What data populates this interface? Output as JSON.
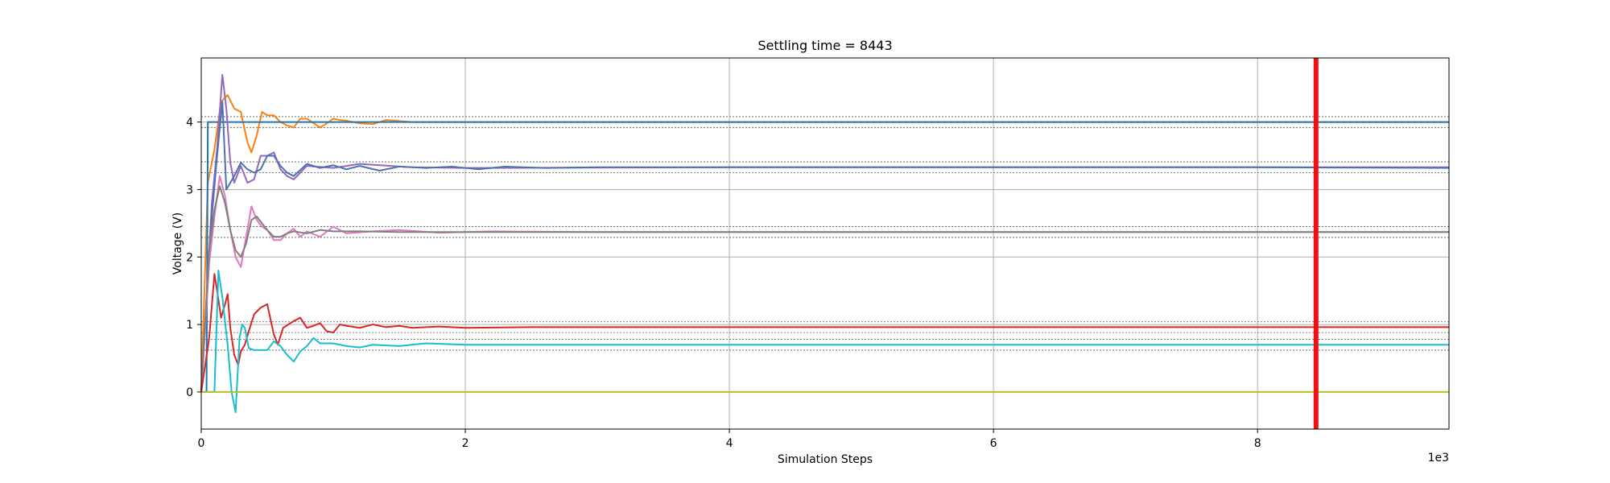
{
  "chart_data": {
    "type": "line",
    "title": "Settling time = 8443",
    "xlabel": "Simulation Steps",
    "ylabel": "Voltage (V)",
    "x_scale_note": "1e3",
    "xlim": [
      0,
      9.45
    ],
    "ylim": [
      -0.55,
      4.95
    ],
    "xticks": [
      0,
      2,
      4,
      6,
      8
    ],
    "xtick_labels": [
      "0",
      "2",
      "4",
      "6",
      "8"
    ],
    "yticks": [
      0,
      1,
      2,
      3,
      4
    ],
    "ytick_labels": [
      "0",
      "1",
      "2",
      "3",
      "4"
    ],
    "grid": true,
    "settling_marker": {
      "x": 8.443,
      "color": "#ee1111"
    },
    "tolerance_bands": [
      {
        "center": 4.0,
        "lower": 3.92,
        "upper": 4.08
      },
      {
        "center": 3.33,
        "lower": 3.25,
        "upper": 3.41
      },
      {
        "center": 2.37,
        "lower": 2.29,
        "upper": 2.45
      },
      {
        "center": 0.96,
        "lower": 0.88,
        "upper": 1.04
      },
      {
        "center": 0.7,
        "lower": 0.62,
        "upper": 0.78
      }
    ],
    "series": [
      {
        "color": "#ff7f0e",
        "x": [
          0,
          0.05,
          0.1,
          0.15,
          0.2,
          0.25,
          0.3,
          0.35,
          0.38,
          0.42,
          0.46,
          0.5,
          0.55,
          0.6,
          0.65,
          0.7,
          0.75,
          0.8,
          0.9,
          0.95,
          1.0,
          1.05,
          1.1,
          1.2,
          1.3,
          1.4,
          1.6,
          1.8,
          2.5,
          4,
          6,
          8,
          9.45
        ],
        "values": [
          0,
          3.1,
          3.6,
          4.3,
          4.4,
          4.2,
          4.15,
          3.7,
          3.55,
          3.8,
          4.15,
          4.1,
          4.1,
          4.0,
          3.95,
          3.92,
          4.05,
          4.05,
          3.92,
          3.98,
          4.05,
          4.03,
          4.02,
          3.98,
          3.97,
          4.03,
          4.0,
          4.0,
          4.0,
          4.0,
          4.0,
          4.0,
          4.0
        ]
      },
      {
        "color": "#1f77b4",
        "x": [
          0,
          0.04,
          0.05,
          0.1,
          0.2,
          0.3,
          0.5,
          1,
          2,
          4,
          6,
          8,
          9.45
        ],
        "values": [
          0,
          0,
          4.0,
          4.0,
          4.0,
          4.0,
          4.0,
          4.0,
          4.0,
          4.0,
          4.0,
          4.0,
          4.0
        ]
      },
      {
        "color": "#9467bd",
        "x": [
          0,
          0.08,
          0.12,
          0.16,
          0.19,
          0.22,
          0.25,
          0.3,
          0.35,
          0.4,
          0.45,
          0.5,
          0.55,
          0.6,
          0.65,
          0.7,
          0.8,
          1.0,
          1.2,
          1.6,
          2.0,
          4,
          6,
          8,
          9.45
        ],
        "values": [
          0,
          2.8,
          3.6,
          4.7,
          4.2,
          3.4,
          3.1,
          3.35,
          3.1,
          3.15,
          3.5,
          3.5,
          3.55,
          3.3,
          3.2,
          3.15,
          3.35,
          3.32,
          3.38,
          3.33,
          3.32,
          3.33,
          3.33,
          3.33,
          3.33
        ]
      },
      {
        "color": "#4c72b0",
        "x": [
          0,
          0.08,
          0.12,
          0.16,
          0.19,
          0.22,
          0.25,
          0.3,
          0.35,
          0.4,
          0.45,
          0.5,
          0.55,
          0.6,
          0.65,
          0.7,
          0.8,
          0.9,
          1.0,
          1.1,
          1.2,
          1.35,
          1.5,
          1.7,
          1.9,
          2.1,
          2.3,
          2.6,
          3.0,
          3.5,
          4,
          5,
          6,
          7,
          8,
          9.45
        ],
        "values": [
          0,
          2.6,
          3.5,
          4.3,
          3.0,
          3.1,
          3.2,
          3.4,
          3.3,
          3.25,
          3.3,
          3.5,
          3.5,
          3.35,
          3.25,
          3.2,
          3.38,
          3.32,
          3.36,
          3.3,
          3.35,
          3.28,
          3.34,
          3.32,
          3.34,
          3.3,
          3.34,
          3.32,
          3.33,
          3.33,
          3.33,
          3.33,
          3.33,
          3.33,
          3.33,
          3.32
        ]
      },
      {
        "color": "#e377c2",
        "x": [
          0,
          0.06,
          0.1,
          0.14,
          0.18,
          0.22,
          0.26,
          0.3,
          0.34,
          0.38,
          0.42,
          0.46,
          0.5,
          0.55,
          0.6,
          0.65,
          0.7,
          0.75,
          0.8,
          0.9,
          1.0,
          1.1,
          1.3,
          1.5,
          1.8,
          2.2,
          3,
          4,
          6,
          8,
          9.45
        ],
        "values": [
          0,
          1.9,
          2.6,
          3.2,
          2.9,
          2.4,
          2.0,
          1.85,
          2.3,
          2.75,
          2.55,
          2.45,
          2.4,
          2.25,
          2.25,
          2.35,
          2.42,
          2.3,
          2.38,
          2.3,
          2.45,
          2.35,
          2.38,
          2.4,
          2.36,
          2.38,
          2.37,
          2.37,
          2.37,
          2.37,
          2.37
        ]
      },
      {
        "color": "#7f7f7f",
        "x": [
          0,
          0.06,
          0.1,
          0.14,
          0.18,
          0.22,
          0.26,
          0.3,
          0.34,
          0.38,
          0.42,
          0.46,
          0.5,
          0.55,
          0.6,
          0.65,
          0.7,
          0.8,
          0.9,
          1.0,
          1.2,
          1.5,
          2.0,
          4,
          6,
          8,
          9.45
        ],
        "values": [
          0,
          2.1,
          2.7,
          3.05,
          2.8,
          2.4,
          2.1,
          2.0,
          2.2,
          2.55,
          2.6,
          2.5,
          2.4,
          2.3,
          2.3,
          2.35,
          2.38,
          2.35,
          2.4,
          2.38,
          2.38,
          2.37,
          2.37,
          2.37,
          2.37,
          2.37,
          2.37
        ]
      },
      {
        "color": "#d62728",
        "x": [
          0,
          0.06,
          0.1,
          0.12,
          0.15,
          0.18,
          0.2,
          0.22,
          0.25,
          0.28,
          0.3,
          0.33,
          0.36,
          0.4,
          0.45,
          0.5,
          0.55,
          0.58,
          0.62,
          0.66,
          0.7,
          0.75,
          0.8,
          0.85,
          0.9,
          0.95,
          1.0,
          1.05,
          1.1,
          1.2,
          1.3,
          1.4,
          1.5,
          1.6,
          1.8,
          2.0,
          2.5,
          3,
          4,
          5,
          6,
          7,
          8,
          9.45
        ],
        "values": [
          0,
          0.8,
          1.75,
          1.5,
          1.1,
          1.3,
          1.45,
          0.95,
          0.55,
          0.4,
          0.6,
          0.7,
          0.9,
          1.15,
          1.25,
          1.3,
          0.85,
          0.7,
          0.95,
          1.0,
          1.05,
          1.1,
          0.95,
          0.98,
          1.02,
          0.9,
          0.88,
          1.0,
          0.98,
          0.95,
          1.0,
          0.96,
          0.98,
          0.95,
          0.97,
          0.95,
          0.96,
          0.96,
          0.96,
          0.96,
          0.96,
          0.96,
          0.96,
          0.96
        ]
      },
      {
        "color": "#17becf",
        "x": [
          0,
          0.1,
          0.13,
          0.16,
          0.2,
          0.23,
          0.26,
          0.29,
          0.31,
          0.33,
          0.36,
          0.4,
          0.45,
          0.5,
          0.55,
          0.6,
          0.65,
          0.7,
          0.75,
          0.8,
          0.85,
          0.9,
          1.0,
          1.1,
          1.2,
          1.3,
          1.5,
          1.7,
          2.0,
          2.5,
          3,
          4,
          5,
          6,
          7,
          8,
          9.45
        ],
        "values": [
          0,
          0,
          1.8,
          1.4,
          0.7,
          0.0,
          -0.3,
          0.8,
          1.0,
          0.95,
          0.65,
          0.62,
          0.62,
          0.62,
          0.75,
          0.68,
          0.55,
          0.45,
          0.6,
          0.68,
          0.8,
          0.72,
          0.72,
          0.68,
          0.66,
          0.7,
          0.68,
          0.72,
          0.7,
          0.7,
          0.7,
          0.7,
          0.7,
          0.7,
          0.7,
          0.7,
          0.7
        ]
      },
      {
        "color": "#bcbd22",
        "x": [
          0,
          1,
          2,
          4,
          6,
          8,
          9.45
        ],
        "values": [
          0,
          0,
          0,
          0,
          0,
          0,
          0
        ]
      }
    ]
  }
}
